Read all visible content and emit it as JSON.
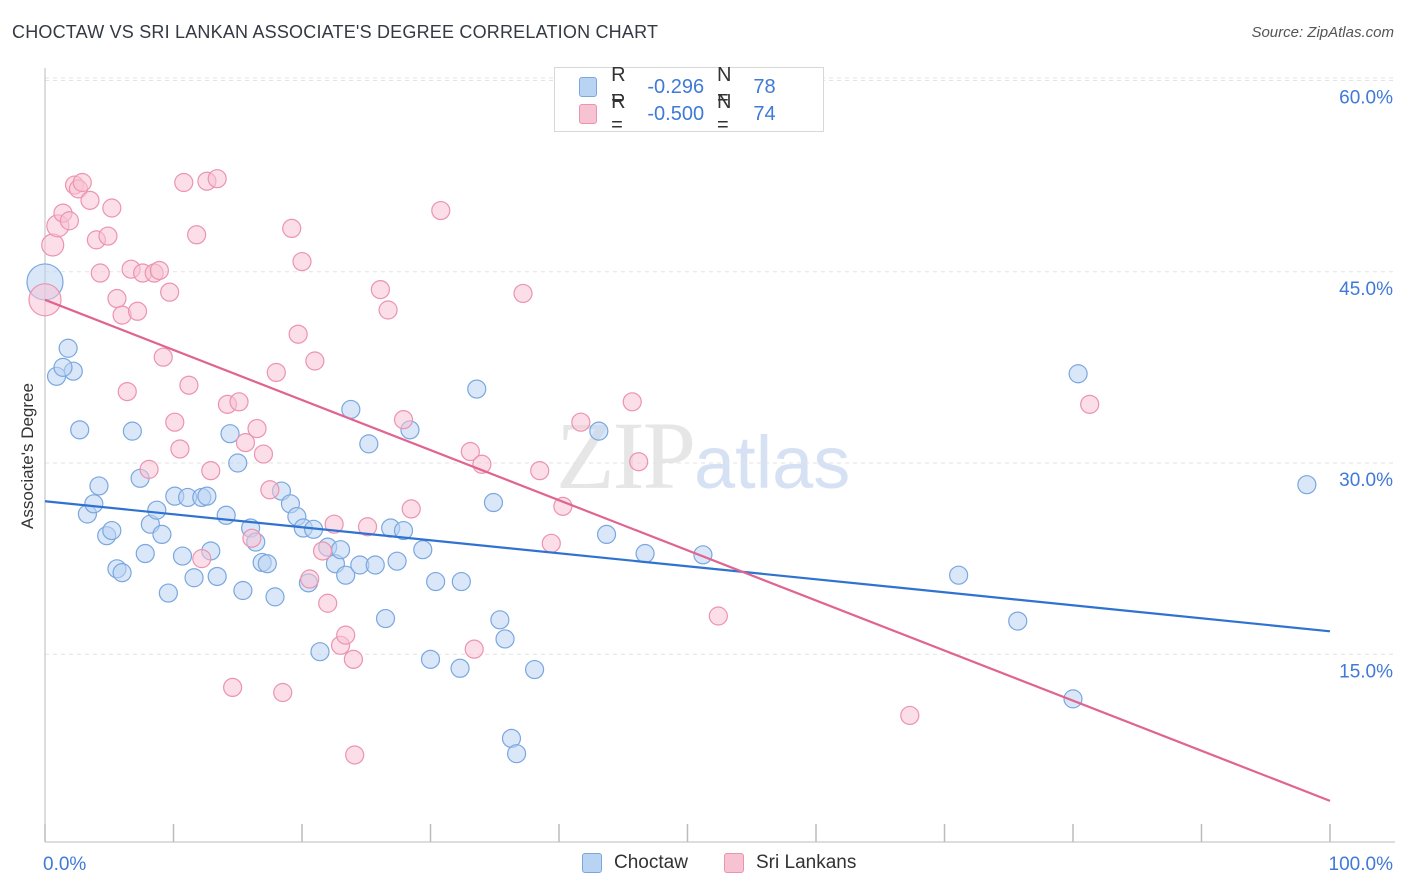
{
  "title": "CHOCTAW VS SRI LANKAN ASSOCIATE'S DEGREE CORRELATION CHART",
  "source": "Source: ZipAtlas.com",
  "watermark": {
    "zip": "ZIP",
    "atlas": "atlas"
  },
  "legend": {
    "r_label": "R =",
    "n_label": "N =",
    "choctaw": {
      "r": "-0.296",
      "n": "78"
    },
    "srilankan": {
      "r": "-0.500",
      "n": "74"
    }
  },
  "colors": {
    "choctaw_fill": "#b9d3f2",
    "choctaw_stroke": "#7aa7e0",
    "choctaw_line": "#2f72d0",
    "srilankan_fill": "#f7c3d3",
    "srilankan_stroke": "#ec93b0",
    "srilankan_line": "#e0648f",
    "axis_text": "#3f7ad6"
  },
  "chart_data": {
    "type": "scatter",
    "title": "CHOCTAW VS SRI LANKAN ASSOCIATE'S DEGREE CORRELATION CHART",
    "xlabel": "",
    "ylabel": "Associate's Degree",
    "xlim": [
      0,
      100
    ],
    "ylim": [
      0,
      63
    ],
    "x_tick_labels": [
      "0.0%",
      "100.0%"
    ],
    "y_ticks": [
      15,
      30,
      45,
      60
    ],
    "y_tick_labels": [
      "15.0%",
      "30.0%",
      "45.0%",
      "60.0%"
    ],
    "grid": true,
    "legend_position": "top-center",
    "series": [
      {
        "name": "Choctaw",
        "trend": {
          "x": [
            0,
            100
          ],
          "y": [
            27.0,
            16.8
          ]
        },
        "points": [
          [
            0,
            44.2
          ],
          [
            1.8,
            39.0
          ],
          [
            0.9,
            36.8
          ],
          [
            2.2,
            37.2
          ],
          [
            1.4,
            37.5
          ],
          [
            2.7,
            32.6
          ],
          [
            3.3,
            26.0
          ],
          [
            3.8,
            26.8
          ],
          [
            4.2,
            28.2
          ],
          [
            4.8,
            24.3
          ],
          [
            5.2,
            24.7
          ],
          [
            5.6,
            21.7
          ],
          [
            6.0,
            21.4
          ],
          [
            6.8,
            32.5
          ],
          [
            7.4,
            28.8
          ],
          [
            7.8,
            22.9
          ],
          [
            8.2,
            25.2
          ],
          [
            8.7,
            26.3
          ],
          [
            9.1,
            24.4
          ],
          [
            9.6,
            19.8
          ],
          [
            10.1,
            27.4
          ],
          [
            10.7,
            22.7
          ],
          [
            11.1,
            27.3
          ],
          [
            11.6,
            21.0
          ],
          [
            12.2,
            27.3
          ],
          [
            12.6,
            27.4
          ],
          [
            12.9,
            23.1
          ],
          [
            13.4,
            21.1
          ],
          [
            14.1,
            25.9
          ],
          [
            14.4,
            32.3
          ],
          [
            15.0,
            30.0
          ],
          [
            15.4,
            20.0
          ],
          [
            16.0,
            24.9
          ],
          [
            16.4,
            23.8
          ],
          [
            16.9,
            22.2
          ],
          [
            17.3,
            22.1
          ],
          [
            17.9,
            19.5
          ],
          [
            18.4,
            27.8
          ],
          [
            19.1,
            26.8
          ],
          [
            19.6,
            25.8
          ],
          [
            20.1,
            24.9
          ],
          [
            20.5,
            20.6
          ],
          [
            20.9,
            24.8
          ],
          [
            21.4,
            15.2
          ],
          [
            22.0,
            23.4
          ],
          [
            22.6,
            22.1
          ],
          [
            23.0,
            23.2
          ],
          [
            23.4,
            21.2
          ],
          [
            23.8,
            34.2
          ],
          [
            24.5,
            22.0
          ],
          [
            25.2,
            31.5
          ],
          [
            25.7,
            22.0
          ],
          [
            26.5,
            17.8
          ],
          [
            26.9,
            24.9
          ],
          [
            27.4,
            22.3
          ],
          [
            27.9,
            24.7
          ],
          [
            28.4,
            32.6
          ],
          [
            29.4,
            23.2
          ],
          [
            30.0,
            14.6
          ],
          [
            30.4,
            20.7
          ],
          [
            32.3,
            13.9
          ],
          [
            32.4,
            20.7
          ],
          [
            33.6,
            35.8
          ],
          [
            34.9,
            26.9
          ],
          [
            35.4,
            17.7
          ],
          [
            35.8,
            16.2
          ],
          [
            36.3,
            8.4
          ],
          [
            36.7,
            7.2
          ],
          [
            38.1,
            13.8
          ],
          [
            43.1,
            32.5
          ],
          [
            43.7,
            24.4
          ],
          [
            46.7,
            22.9
          ],
          [
            51.2,
            22.8
          ],
          [
            71.1,
            21.2
          ],
          [
            75.7,
            17.6
          ],
          [
            80.0,
            11.5
          ],
          [
            80.4,
            37.0
          ],
          [
            98.2,
            28.3
          ]
        ]
      },
      {
        "name": "Sri Lankans",
        "trend": {
          "x": [
            0,
            100
          ],
          "y": [
            42.8,
            3.5
          ]
        },
        "points": [
          [
            0,
            42.8
          ],
          [
            0.6,
            47.1
          ],
          [
            1.0,
            48.6
          ],
          [
            1.4,
            49.6
          ],
          [
            1.9,
            49.0
          ],
          [
            2.3,
            51.8
          ],
          [
            2.6,
            51.5
          ],
          [
            2.9,
            52.0
          ],
          [
            3.5,
            50.6
          ],
          [
            4.0,
            47.5
          ],
          [
            4.3,
            44.9
          ],
          [
            4.9,
            47.8
          ],
          [
            5.2,
            50.0
          ],
          [
            5.6,
            42.9
          ],
          [
            6.0,
            41.6
          ],
          [
            6.4,
            35.6
          ],
          [
            6.7,
            45.2
          ],
          [
            7.2,
            41.9
          ],
          [
            7.6,
            44.9
          ],
          [
            8.1,
            29.5
          ],
          [
            8.5,
            44.9
          ],
          [
            8.9,
            45.1
          ],
          [
            9.2,
            38.3
          ],
          [
            9.7,
            43.4
          ],
          [
            10.1,
            33.2
          ],
          [
            10.5,
            31.1
          ],
          [
            10.8,
            52.0
          ],
          [
            11.2,
            36.1
          ],
          [
            11.8,
            47.9
          ],
          [
            12.2,
            22.5
          ],
          [
            12.6,
            52.1
          ],
          [
            12.9,
            29.4
          ],
          [
            13.4,
            52.3
          ],
          [
            14.2,
            34.6
          ],
          [
            14.6,
            12.4
          ],
          [
            15.1,
            34.8
          ],
          [
            15.6,
            31.6
          ],
          [
            16.1,
            24.1
          ],
          [
            16.5,
            32.7
          ],
          [
            17.0,
            30.7
          ],
          [
            17.5,
            27.9
          ],
          [
            18.0,
            37.1
          ],
          [
            18.5,
            12.0
          ],
          [
            19.2,
            48.4
          ],
          [
            19.7,
            40.1
          ],
          [
            20.0,
            45.8
          ],
          [
            20.6,
            20.9
          ],
          [
            21.0,
            38.0
          ],
          [
            21.6,
            23.1
          ],
          [
            22.0,
            19.0
          ],
          [
            22.5,
            25.2
          ],
          [
            23.0,
            15.7
          ],
          [
            23.4,
            16.5
          ],
          [
            24.0,
            14.6
          ],
          [
            24.1,
            7.1
          ],
          [
            25.1,
            25.0
          ],
          [
            26.1,
            43.6
          ],
          [
            26.7,
            42.0
          ],
          [
            27.9,
            33.4
          ],
          [
            28.5,
            26.4
          ],
          [
            30.8,
            49.8
          ],
          [
            33.1,
            30.9
          ],
          [
            33.4,
            15.4
          ],
          [
            34.0,
            29.9
          ],
          [
            37.2,
            43.3
          ],
          [
            38.5,
            29.4
          ],
          [
            39.4,
            23.7
          ],
          [
            40.3,
            26.6
          ],
          [
            41.7,
            33.2
          ],
          [
            45.7,
            34.8
          ],
          [
            46.2,
            30.1
          ],
          [
            52.4,
            18.0
          ],
          [
            67.3,
            10.2
          ],
          [
            81.3,
            34.6
          ]
        ]
      }
    ]
  }
}
